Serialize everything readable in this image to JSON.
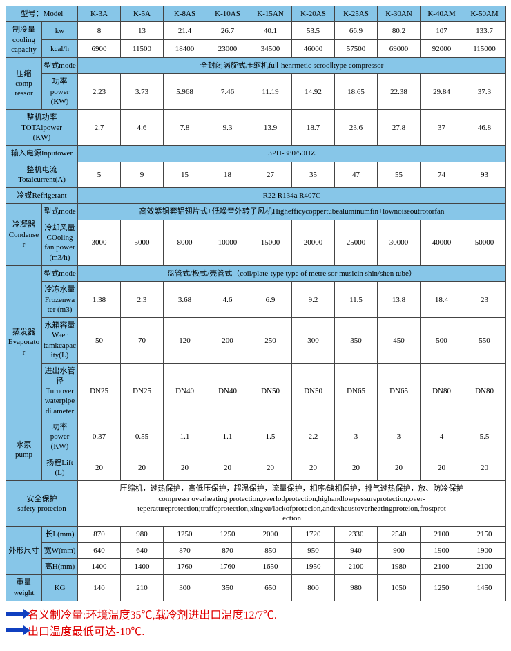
{
  "colors": {
    "header": "#87c6e8",
    "border": "#444",
    "footer_text": "#e00000",
    "arrow": "#1040c0"
  },
  "models": [
    "K-3A",
    "K-5A",
    "K-8AS",
    "K-10AS",
    "K-15AN",
    "K-20AS",
    "K-25AS",
    "K-30AN",
    "K-40AM",
    "K-50AM"
  ],
  "labels": {
    "model": "型号：Model",
    "cooling": "制冷量\ncooling capacity",
    "kw": "kw",
    "kcal": "kcal/h",
    "compressor_group": "压缩\ncomp\nressor",
    "type_mode": "型式mode",
    "power_kw": "功率\npower\n(KW)",
    "total_power": "整机功率\nTOTAlpower\n(KW)",
    "input_power": "输入电源Inputower",
    "total_current": "整机电流\nTotalcurrent(A)",
    "refrigerant": "冷媒Refrigerant",
    "condenser": "冷凝器\nCondense\nr",
    "cooling_fan": "冷却风量\nCOoling\nfan power\n(m3/h)",
    "evaporator": "蒸发器\nEvaporato\nr",
    "frozen_water": "冷冻水量\nFrozenwa\nter (m3)",
    "tank_capacity": "水箱容量\nWaer\ntamkcapac\nity(L)",
    "pipe_diameter": "进出水管径\nTurnover\nwaterpipe\ndi ameter",
    "pump": "水泵\npump",
    "pump_power": "功率power\n(KW)",
    "lift": "扬程Lift\n(L)",
    "safety": "安全保护\nsafety protecion",
    "dimensions": "外形尺寸",
    "length": "长L(mm)",
    "width": "宽W(mm)",
    "height": "高H(mm)",
    "weight": "重量\nweight",
    "kg": "KG"
  },
  "spanned": {
    "compressor_type": "全封闭涡旋式压缩机fuⅡ-henrmetic scrooⅡtype compressor",
    "input_power_val": "3PH-380/50HZ",
    "refrigerant_val": "R22 R134a R407C",
    "condenser_type": "高效紫铜套铝翅片式+低噪音外转子风机Highefficycoppertubealuminumfin+lownoiseoutrotorfan",
    "evaporator_type": "盘管式/板式/壳管式（coil/plate-type type of metre sor musicin shin/shen tube）",
    "safety_text": "压缩机，过热保护，高低压保护，超温保护，流量保护，相序/缺相保护，排气过热保护，放、防冷保护\ncompressr overheating protection,overlodprotection,highandlowpessureprotection,over-\nteperatureprotection;traffcprotection,xingxu/lackofprotecion,andexhaustoverheatingproteion,frostprot\nection"
  },
  "rows": {
    "kw": [
      "8",
      "13",
      "21.4",
      "26.7",
      "40.1",
      "53.5",
      "66.9",
      "80.2",
      "107",
      "133.7"
    ],
    "kcal": [
      "6900",
      "11500",
      "18400",
      "23000",
      "34500",
      "46000",
      "57500",
      "69000",
      "92000",
      "115000"
    ],
    "comp_power": [
      "2.23",
      "3.73",
      "5.968",
      "7.46",
      "11.19",
      "14.92",
      "18.65",
      "22.38",
      "29.84",
      "37.3"
    ],
    "total_power": [
      "2.7",
      "4.6",
      "7.8",
      "9.3",
      "13.9",
      "18.7",
      "23.6",
      "27.8",
      "37",
      "46.8"
    ],
    "total_current": [
      "5",
      "9",
      "15",
      "18",
      "27",
      "35",
      "47",
      "55",
      "74",
      "93"
    ],
    "cooling_fan": [
      "3000",
      "5000",
      "8000",
      "10000",
      "15000",
      "20000",
      "25000",
      "30000",
      "40000",
      "50000"
    ],
    "frozen_water": [
      "1.38",
      "2.3",
      "3.68",
      "4.6",
      "6.9",
      "9.2",
      "11.5",
      "13.8",
      "18.4",
      "23"
    ],
    "tank_capacity": [
      "50",
      "70",
      "120",
      "200",
      "250",
      "300",
      "350",
      "450",
      "500",
      "550"
    ],
    "pipe_diameter": [
      "DN25",
      "DN25",
      "DN40",
      "DN40",
      "DN50",
      "DN50",
      "DN65",
      "DN65",
      "DN80",
      "DN80"
    ],
    "pump_power": [
      "0.37",
      "0.55",
      "1.1",
      "1.1",
      "1.5",
      "2.2",
      "3",
      "3",
      "4",
      "5.5"
    ],
    "lift": [
      "20",
      "20",
      "20",
      "20",
      "20",
      "20",
      "20",
      "20",
      "20",
      "20"
    ],
    "length": [
      "870",
      "980",
      "1250",
      "1250",
      "2000",
      "1720",
      "2330",
      "2540",
      "2100",
      "2150"
    ],
    "width": [
      "640",
      "640",
      "870",
      "870",
      "850",
      "950",
      "940",
      "900",
      "1900",
      "1900"
    ],
    "height": [
      "1400",
      "1400",
      "1760",
      "1760",
      "1650",
      "1950",
      "2100",
      "1980",
      "2100",
      "2100"
    ],
    "weight": [
      "140",
      "210",
      "300",
      "350",
      "650",
      "800",
      "980",
      "1050",
      "1250",
      "1450"
    ]
  },
  "footer": {
    "line1": "名义制冷量:环境温度35℃,载冷剂进出口温度12/7℃.",
    "line2": "出口温度最低可达-10℃."
  }
}
